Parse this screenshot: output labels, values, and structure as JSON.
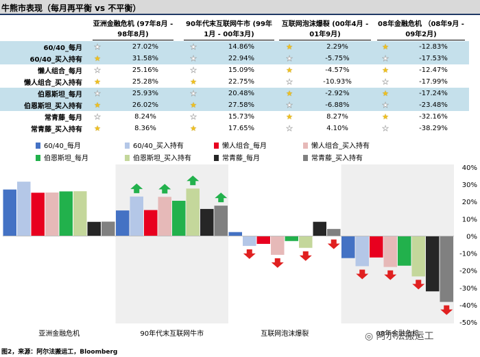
{
  "title": "牛熊市表现（每月再平衡 vs 不平衡）",
  "footer": "图2，来源：阿尔法搬运工，Bloomberg",
  "watermark": "阿尔法搬运工",
  "colors": {
    "star_filled": "#f0c020",
    "star_outline": "#ffffff",
    "row_highlight": "#c5e0eb",
    "arrow_up": "#22b14c",
    "arrow_down": "#e02020",
    "shade": "#efefef"
  },
  "table": {
    "columns": [
      "亚洲金融危机 (97年8月 - 98年8月)",
      "90年代末互联网牛市 (99年1月 - 00年3月)",
      "互联网泡沫爆裂 (00年4月 - 01年9月)",
      "08年金融危机 （08年9月 - 09年2月)"
    ],
    "rows": [
      {
        "label": "60/40_每月",
        "highlight": true,
        "cells": [
          {
            "star": "outline",
            "value": "27.02%"
          },
          {
            "star": "outline",
            "value": "14.86%"
          },
          {
            "star": "filled",
            "value": "2.29%"
          },
          {
            "star": "filled",
            "value": "-12.83%"
          }
        ]
      },
      {
        "label": "60/40_买入持有",
        "highlight": true,
        "cells": [
          {
            "star": "filled",
            "value": "31.58%"
          },
          {
            "star": "outline",
            "value": "22.94%"
          },
          {
            "star": "outline",
            "value": "-5.75%"
          },
          {
            "star": "outline",
            "value": "-17.53%"
          }
        ]
      },
      {
        "label": "懒人组合_每月",
        "highlight": false,
        "cells": [
          {
            "star": "outline",
            "value": "25.16%"
          },
          {
            "star": "outline",
            "value": "15.09%"
          },
          {
            "star": "filled",
            "value": "-4.57%"
          },
          {
            "star": "filled",
            "value": "-12.47%"
          }
        ]
      },
      {
        "label": "懒人组合_买入持有",
        "highlight": false,
        "cells": [
          {
            "star": "filled",
            "value": "25.28%"
          },
          {
            "star": "filled",
            "value": "22.75%"
          },
          {
            "star": "outline",
            "value": "-10.93%"
          },
          {
            "star": "outline",
            "value": "-17.99%"
          }
        ]
      },
      {
        "label": "伯恩斯坦_每月",
        "highlight": true,
        "cells": [
          {
            "star": "outline",
            "value": "25.93%"
          },
          {
            "star": "outline",
            "value": "20.48%"
          },
          {
            "star": "filled",
            "value": "-2.92%"
          },
          {
            "star": "filled",
            "value": "-17.24%"
          }
        ]
      },
      {
        "label": "伯恩斯坦_买入持有",
        "highlight": true,
        "cells": [
          {
            "star": "filled",
            "value": "26.02%"
          },
          {
            "star": "filled",
            "value": "27.58%"
          },
          {
            "star": "outline",
            "value": "-6.88%"
          },
          {
            "star": "outline",
            "value": "-23.48%"
          }
        ]
      },
      {
        "label": "常青藤_每月",
        "highlight": false,
        "cells": [
          {
            "star": "outline",
            "value": "8.24%"
          },
          {
            "star": "outline",
            "value": "15.73%"
          },
          {
            "star": "filled",
            "value": "8.27%"
          },
          {
            "star": "filled",
            "value": "-32.16%"
          }
        ]
      },
      {
        "label": "常青藤_买入持有",
        "highlight": false,
        "cells": [
          {
            "star": "filled",
            "value": "8.36%"
          },
          {
            "star": "filled",
            "value": "17.65%"
          },
          {
            "star": "outline",
            "value": "4.10%"
          },
          {
            "star": "outline",
            "value": "-38.29%"
          }
        ]
      }
    ]
  },
  "chart_data": {
    "type": "bar",
    "title": "",
    "xlabel": "",
    "ylabel": "",
    "ylim": [
      -0.5,
      0.4
    ],
    "yticks": [
      "40%",
      "30%",
      "20%",
      "10%",
      "0%",
      "-10%",
      "-20%",
      "-30%",
      "-40%",
      "-50%"
    ],
    "y_axis_side": "right",
    "categories": [
      "亚洲金融危机",
      "90年代末互联网牛市",
      "互联网泡沫爆裂",
      "08年金融危机"
    ],
    "shaded_categories": [
      1,
      3
    ],
    "series": [
      {
        "name": "60/40_每月",
        "color": "#4472c4",
        "values": [
          0.2702,
          0.1486,
          0.0229,
          -0.1283
        ]
      },
      {
        "name": "60/40_买入持有",
        "color": "#b4c7e7",
        "values": [
          0.3158,
          0.2294,
          -0.0575,
          -0.1753
        ]
      },
      {
        "name": "懒人组合_每月",
        "color": "#e8001f",
        "values": [
          0.2516,
          0.1509,
          -0.0457,
          -0.1247
        ]
      },
      {
        "name": "懒人组合_买入持有",
        "color": "#e6b9b8",
        "values": [
          0.2528,
          0.2275,
          -0.1093,
          -0.1799
        ]
      },
      {
        "name": "伯恩斯坦_每月",
        "color": "#22b14c",
        "values": [
          0.2593,
          0.2048,
          -0.0292,
          -0.1724
        ]
      },
      {
        "name": "伯恩斯坦_买入持有",
        "color": "#c4d79b",
        "values": [
          0.2602,
          0.2758,
          -0.0688,
          -0.2348
        ]
      },
      {
        "name": "常青藤_每月",
        "color": "#262626",
        "values": [
          0.0824,
          0.1573,
          0.0827,
          -0.3216
        ]
      },
      {
        "name": "常青藤_买入持有",
        "color": "#808080",
        "values": [
          0.0836,
          0.1765,
          0.041,
          -0.3829
        ]
      }
    ],
    "arrows": [
      {
        "category": 1,
        "series": 1,
        "direction": "up"
      },
      {
        "category": 1,
        "series": 3,
        "direction": "up"
      },
      {
        "category": 1,
        "series": 5,
        "direction": "up"
      },
      {
        "category": 1,
        "series": 7,
        "direction": "up"
      },
      {
        "category": 2,
        "series": 1,
        "direction": "down"
      },
      {
        "category": 2,
        "series": 3,
        "direction": "down"
      },
      {
        "category": 2,
        "series": 5,
        "direction": "down"
      },
      {
        "category": 2,
        "series": 7,
        "direction": "down"
      },
      {
        "category": 3,
        "series": 1,
        "direction": "down"
      },
      {
        "category": 3,
        "series": 3,
        "direction": "down"
      },
      {
        "category": 3,
        "series": 5,
        "direction": "down"
      },
      {
        "category": 3,
        "series": 7,
        "direction": "down"
      }
    ]
  }
}
